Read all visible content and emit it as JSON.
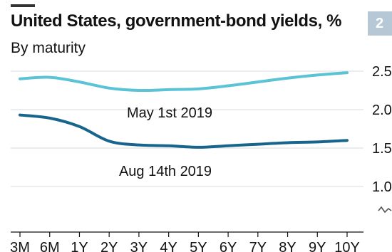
{
  "header": {
    "title": "United States, government-bond yields, %",
    "subtitle": "By maturity",
    "panel_number": "2"
  },
  "chart_data": {
    "type": "line",
    "title": "United States, government-bond yields, %",
    "subtitle": "By maturity",
    "xlabel": "",
    "ylabel": "",
    "x": [
      "3M",
      "6M",
      "1Y",
      "2Y",
      "3Y",
      "4Y",
      "5Y",
      "6Y",
      "7Y",
      "8Y",
      "9Y",
      "10Y"
    ],
    "ylim": [
      0.75,
      2.5
    ],
    "yticks": [
      {
        "value": 2.5,
        "label": "2.5"
      },
      {
        "value": 2.0,
        "label": "2.0"
      },
      {
        "value": 1.5,
        "label": "1.5"
      },
      {
        "value": 1.0,
        "label": "1.0"
      }
    ],
    "grid": true,
    "axis_break": true,
    "series": [
      {
        "name": "May 1st 2019",
        "color": "#5bc3d6",
        "values": [
          2.4,
          2.42,
          2.36,
          2.28,
          2.25,
          2.26,
          2.27,
          2.31,
          2.36,
          2.41,
          2.45,
          2.48
        ]
      },
      {
        "name": "Aug 14th 2019",
        "color": "#17648d",
        "values": [
          1.93,
          1.89,
          1.78,
          1.59,
          1.54,
          1.53,
          1.51,
          1.53,
          1.55,
          1.57,
          1.58,
          1.6
        ]
      }
    ]
  }
}
